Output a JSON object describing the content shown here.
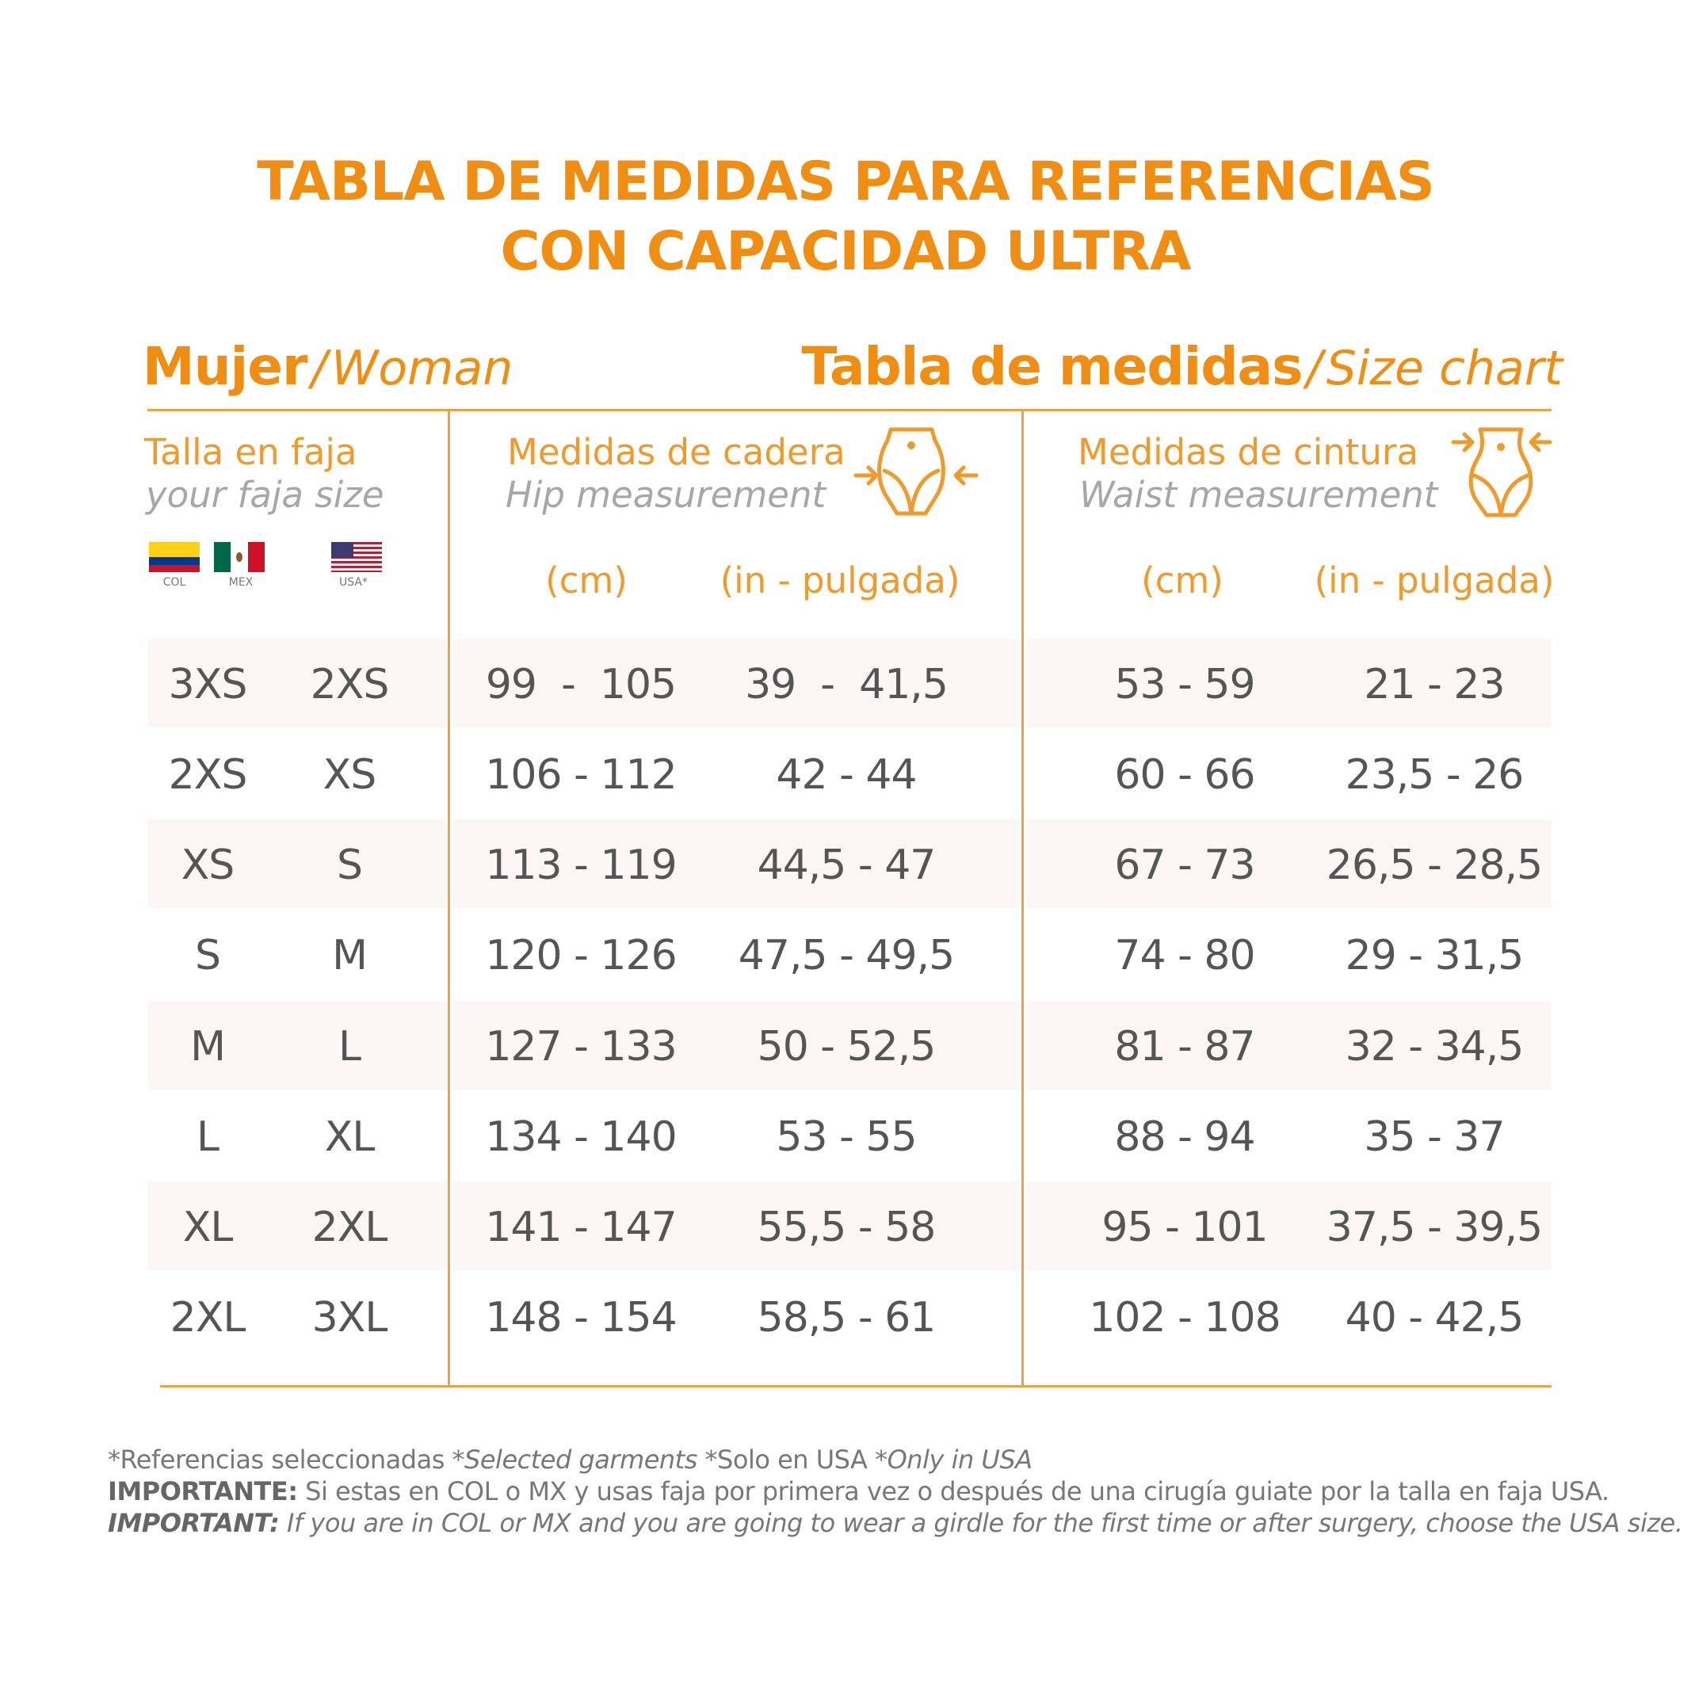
{
  "title": {
    "line1": "TABLA DE MEDIDAS PARA REFERENCIAS",
    "line2": "CON CAPACIDAD ULTRA"
  },
  "subtitle_left": {
    "strong": "Mujer",
    "slash": "/",
    "light": "Woman"
  },
  "subtitle_right": {
    "strong": "Tabla de medidas",
    "slash": "/",
    "light": "Size chart"
  },
  "columns": {
    "size": {
      "es": "Talla en faja",
      "en": "your faja size"
    },
    "hip": {
      "es": "Medidas de cadera",
      "en": "Hip measurement",
      "unit_cm": "(cm)",
      "unit_in": "(in - pulgada)"
    },
    "waist": {
      "es": "Medidas de cintura",
      "en": "Waist measurement",
      "unit_cm": "(cm)",
      "unit_in": "(in - pulgada)"
    }
  },
  "flags": {
    "col": "COL",
    "mex": "MEX",
    "usa": "USA*"
  },
  "colors": {
    "accent": "#ef8e12",
    "band": "#fcf6f7",
    "line": "#e8a248"
  },
  "icons": {
    "hip": "hip-arrows-icon",
    "waist": "waist-arrows-icon"
  },
  "rows": [
    {
      "col_mex": "3XS",
      "usa": "2XS",
      "hip_cm": "99  -  105",
      "hip_in": "39  -  41,5",
      "waist_cm": "53 - 59",
      "waist_in": "21 - 23"
    },
    {
      "col_mex": "2XS",
      "usa": "XS",
      "hip_cm": "106 - 112",
      "hip_in": "42 - 44",
      "waist_cm": "60 - 66",
      "waist_in": "23,5 - 26"
    },
    {
      "col_mex": "XS",
      "usa": "S",
      "hip_cm": "113 - 119",
      "hip_in": "44,5 - 47",
      "waist_cm": "67 - 73",
      "waist_in": "26,5 - 28,5"
    },
    {
      "col_mex": "S",
      "usa": "M",
      "hip_cm": "120 - 126",
      "hip_in": "47,5 - 49,5",
      "waist_cm": "74 - 80",
      "waist_in": "29 - 31,5"
    },
    {
      "col_mex": "M",
      "usa": "L",
      "hip_cm": "127 - 133",
      "hip_in": "50 - 52,5",
      "waist_cm": "81 - 87",
      "waist_in": "32 - 34,5"
    },
    {
      "col_mex": "L",
      "usa": "XL",
      "hip_cm": "134 - 140",
      "hip_in": "53 - 55",
      "waist_cm": "88 - 94",
      "waist_in": "35 - 37"
    },
    {
      "col_mex": "XL",
      "usa": "2XL",
      "hip_cm": "141 - 147",
      "hip_in": "55,5 - 58",
      "waist_cm": "95 - 101",
      "waist_in": "37,5 - 39,5"
    },
    {
      "col_mex": "2XL",
      "usa": "3XL",
      "hip_cm": "148 - 154",
      "hip_in": "58,5 - 61",
      "waist_cm": "102 - 108",
      "waist_in": "40 - 42,5"
    }
  ],
  "footnotes": {
    "line1_a": "*Referencias seleccionadas ",
    "line1_b": "*Selected garments",
    "line1_c": " *Solo en USA ",
    "line1_d": "*Only in USA",
    "line2_label": "IMPORTANTE:",
    "line2_text": " Si estas en COL o MX y usas faja por primera vez o después de una cirugía guiate por la talla en faja USA.",
    "line3_label": "IMPORTANT:",
    "line3_text": " If you are in COL or MX and you are going to wear a girdle for the first time or after surgery, choose the USA size."
  }
}
